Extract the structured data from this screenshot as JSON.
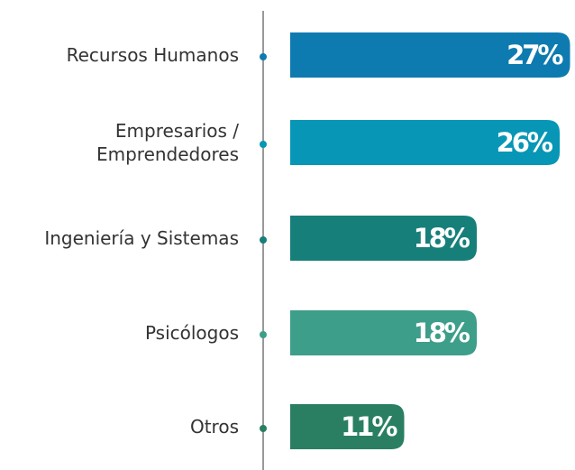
{
  "chart_data": {
    "type": "bar",
    "orientation": "horizontal",
    "categories": [
      "Recursos Humanos",
      "Empresarios / Emprendedores",
      "Ingeniería y Sistemas",
      "Psicólogos",
      "Otros"
    ],
    "values": [
      27,
      26,
      18,
      18,
      11
    ],
    "value_labels": [
      "27%",
      "26%",
      "18%",
      "18%",
      "11%"
    ],
    "colors": [
      "#0e7bb0",
      "#0796b5",
      "#167f7a",
      "#3d9e8a",
      "#2a7f62"
    ]
  }
}
